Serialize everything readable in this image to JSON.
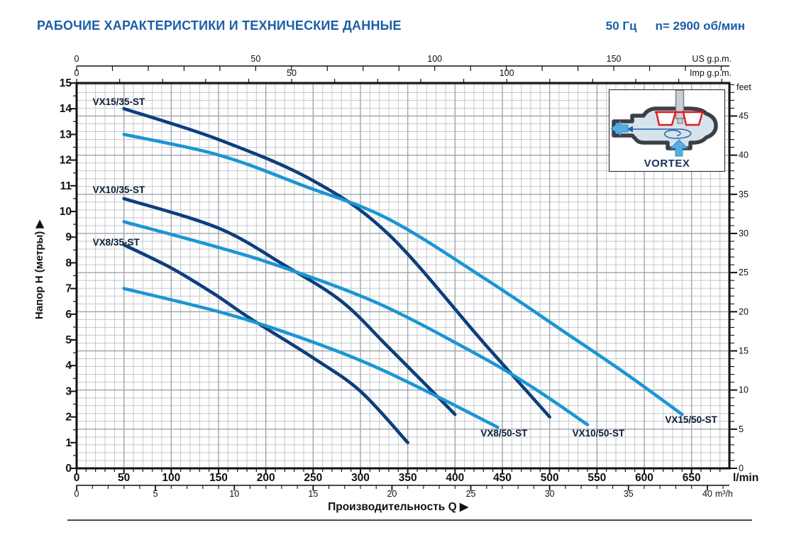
{
  "header": {
    "title": "РАБОЧИЕ ХАРАКТЕРИСТИКИ И ТЕХНИЧЕСКИЕ ДАННЫЕ",
    "frequency": "50 Гц",
    "speed": "n= 2900 об/мин",
    "accent_color": "#1b5ea8"
  },
  "axis_titles": {
    "y_left": "Напор H (метры)  ▶",
    "x_bottom": "Производительность Q  ▶"
  },
  "inset": {
    "label": "VORTEX"
  },
  "chart_data": {
    "type": "line",
    "title": "РАБОЧИЕ ХАРАКТЕРИСТИКИ И ТЕХНИЧЕСКИЕ ДАННЫЕ",
    "subtitle": "50 Гц  n= 2900 об/мин",
    "x_range_lmin": [
      0,
      690
    ],
    "y_range_m": [
      0,
      15
    ],
    "grid": {
      "minor_color": "#c3c7cc",
      "major_color": "#9fa5ac"
    },
    "axes": {
      "lmin": {
        "unit": "l/min",
        "tick_labels": [
          0,
          50,
          100,
          150,
          200,
          250,
          300,
          350,
          400,
          450,
          500,
          550,
          600,
          650
        ],
        "minor_step": 10
      },
      "m3h": {
        "unit": "m³/h",
        "tick_labels": [
          0,
          5,
          10,
          15,
          20,
          25,
          30,
          35,
          40
        ],
        "minor_step": 1,
        "lmin_per_unit": 16.6667
      },
      "us_gpm": {
        "unit": "US g.p.m.",
        "tick_labels": [
          0,
          50,
          100,
          150
        ],
        "minor_step": 10,
        "lmin_per_unit": 3.7854
      },
      "imp_gpm": {
        "unit": "Imp g.p.m.",
        "tick_labels": [
          0,
          50,
          100
        ],
        "minor_step": 10,
        "lmin_per_unit": 4.5461
      },
      "meters": {
        "unit": "Напор H (метры)",
        "tick_labels": [
          0,
          1,
          2,
          3,
          4,
          5,
          6,
          7,
          8,
          9,
          10,
          11,
          12,
          13,
          14,
          15
        ],
        "minor_step": 0.5
      },
      "feet": {
        "unit": "feet",
        "tick_labels": [
          0,
          5,
          10,
          15,
          20,
          25,
          30,
          35,
          40,
          45
        ],
        "minor_step": 1,
        "m_per_unit": 0.3048
      }
    },
    "series": [
      {
        "name": "VX15/35-ST",
        "family": "35",
        "color": "#0d3e7c",
        "points": [
          [
            50,
            14.0
          ],
          [
            150,
            12.8
          ],
          [
            250,
            11.2
          ],
          [
            330,
            9.1
          ],
          [
            430,
            4.9
          ],
          [
            500,
            2.0
          ]
        ],
        "label_at": [
          17,
          14.15
        ],
        "label_anchor": "start"
      },
      {
        "name": "VX10/35-ST",
        "family": "35",
        "color": "#0d3e7c",
        "points": [
          [
            50,
            10.5
          ],
          [
            150,
            9.35
          ],
          [
            220,
            7.9
          ],
          [
            280,
            6.5
          ],
          [
            330,
            4.7
          ],
          [
            400,
            2.1
          ]
        ],
        "label_at": [
          17,
          10.72
        ],
        "label_anchor": "start"
      },
      {
        "name": "VX8/35-ST",
        "family": "35",
        "color": "#0d3e7c",
        "points": [
          [
            50,
            8.7
          ],
          [
            100,
            7.8
          ],
          [
            145,
            6.8
          ],
          [
            185,
            5.8
          ],
          [
            250,
            4.3
          ],
          [
            300,
            3.0
          ],
          [
            350,
            1.0
          ]
        ],
        "label_at": [
          17,
          8.68
        ],
        "label_anchor": "start"
      },
      {
        "name": "VX15/50-ST",
        "family": "50",
        "color": "#1a96d4",
        "points": [
          [
            50,
            13.0
          ],
          [
            150,
            12.2
          ],
          [
            240,
            11.0
          ],
          [
            330,
            9.7
          ],
          [
            435,
            7.3
          ],
          [
            520,
            5.2
          ],
          [
            580,
            3.7
          ],
          [
            640,
            2.1
          ]
        ],
        "label_at": [
          622,
          1.77
        ],
        "label_anchor": "start"
      },
      {
        "name": "VX10/50-ST",
        "family": "50",
        "color": "#1a96d4",
        "points": [
          [
            50,
            9.6
          ],
          [
            150,
            8.6
          ],
          [
            220,
            7.8
          ],
          [
            320,
            6.4
          ],
          [
            420,
            4.5
          ],
          [
            480,
            3.2
          ],
          [
            540,
            1.7
          ]
        ],
        "label_at": [
          524,
          1.24
        ],
        "label_anchor": "start"
      },
      {
        "name": "VX8/50-ST",
        "family": "50",
        "color": "#1a96d4",
        "points": [
          [
            50,
            7.0
          ],
          [
            150,
            6.1
          ],
          [
            220,
            5.3
          ],
          [
            300,
            4.2
          ],
          [
            370,
            3.0
          ],
          [
            445,
            1.6
          ]
        ],
        "label_at": [
          427,
          1.24
        ],
        "label_anchor": "start"
      }
    ]
  }
}
